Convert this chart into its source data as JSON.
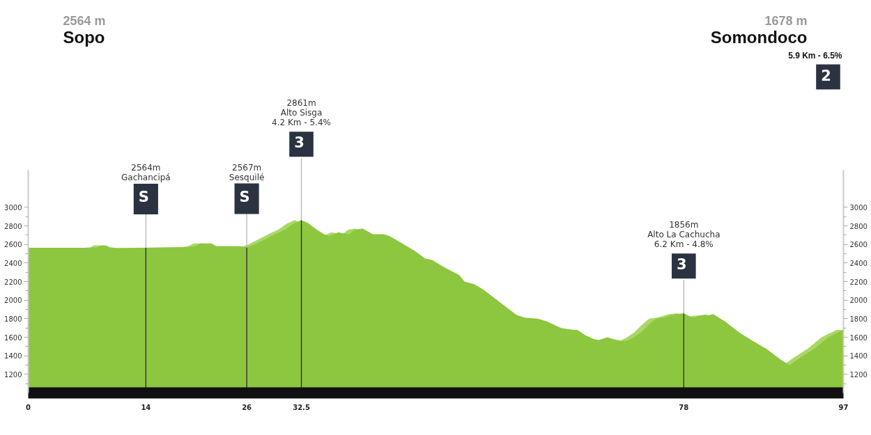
{
  "chart_data": {
    "type": "area",
    "xlim": [
      0,
      97
    ],
    "ylim": [
      1000,
      3400
    ],
    "y2lim": [
      1000,
      3400
    ],
    "xticks": [
      0,
      14,
      26,
      32.5,
      78,
      97
    ],
    "yticks": [
      {
        "value": 1100,
        "label": null
      },
      1200,
      {
        "value": 1300,
        "label": null
      },
      1400,
      {
        "value": 1500,
        "label": null
      },
      1600,
      {
        "value": 1700,
        "label": null
      },
      1800,
      {
        "value": 1900,
        "label": null
      },
      2000,
      {
        "value": 2100,
        "label": null
      },
      2200,
      {
        "value": 2300,
        "label": null
      },
      2400,
      {
        "value": 2500,
        "label": null
      },
      2600,
      {
        "value": 2700,
        "label": null
      },
      2800,
      {
        "value": 2900,
        "label": null
      },
      3000
    ],
    "y2ticks": [
      {
        "value": 1100,
        "label": null
      },
      1200,
      {
        "value": 1300,
        "label": null
      },
      1400,
      {
        "value": 1500,
        "label": null
      },
      1600,
      {
        "value": 1700,
        "label": null
      },
      1800,
      {
        "value": 1900,
        "label": null
      },
      2000,
      {
        "value": 2100,
        "label": null
      },
      2200,
      {
        "value": 2300,
        "label": null
      },
      2400,
      {
        "value": 2500,
        "label": null
      },
      2600,
      {
        "value": 2700,
        "label": null
      },
      2800,
      {
        "value": 2900,
        "label": null
      },
      3000
    ],
    "series": [
      {
        "color": "#a9d867",
        "x": [
          0,
          6.7,
          7.4,
          7.8,
          8.4,
          8.9,
          9.7,
          13.2,
          18.2,
          19.0,
          19.7,
          21.0,
          21.6,
          22.7,
          24.4,
          25.2,
          26.2,
          27.5,
          28.8,
          29.8,
          30.7,
          31.7,
          32.1,
          33.5,
          34.4,
          35.4,
          36.1,
          36.6,
          37.4,
          38.1,
          39.0,
          40.2,
          41.5,
          42.2,
          43.7,
          45.2,
          46.4,
          47.3,
          48.2,
          49.2,
          50.5,
          51.1,
          52.3,
          53.4,
          54.7,
          56.0,
          57.3,
          58.3,
          59.8,
          60.9,
          62.6,
          63.9,
          64.5,
          65.5,
          66.5,
          67.1,
          68.1,
          68.8,
          69.8,
          70.4,
          71.1,
          72.1,
          73.1,
          73.9,
          74.8,
          75.6,
          76.3,
          77.2,
          78.8,
          79.1,
          80.3,
          80.7,
          82.1,
          83.8,
          85.4,
          87.1,
          88.7,
          90.2,
          91.1,
          92.8,
          94.4,
          96.2,
          97
        ],
        "values": [
          2564,
          2564,
          2570,
          2590,
          2590,
          2570,
          2560,
          2564,
          2570,
          2580,
          2610,
          2610,
          null,
          2580,
          2580,
          2567,
          2600,
          2660,
          2720,
          2760,
          2820,
          2861,
          2845,
          null,
          null,
          2703,
          2730,
          2720,
          2710,
          2760,
          2770,
          null,
          null,
          null,
          null,
          null,
          null,
          null,
          null,
          null,
          null,
          null,
          null,
          null,
          null,
          null,
          null,
          null,
          null,
          null,
          null,
          null,
          null,
          null,
          null,
          null,
          null,
          null,
          null,
          1560,
          1590,
          1650,
          1740,
          1800,
          1810,
          1830,
          1850,
          1856,
          1822,
          1830,
          1840,
          1850,
          null,
          null,
          null,
          null,
          null,
          1323,
          1380,
          1480,
          1600,
          1678,
          1678
        ]
      },
      {
        "color": "#8dc63f",
        "x": [
          0,
          7.5,
          8.2,
          8.6,
          9.2,
          9.7,
          10.5,
          14,
          19.0,
          19.8,
          20.5,
          21.8,
          22.4,
          23.5,
          25.2,
          26,
          27.0,
          28.3,
          29.6,
          30.6,
          31.5,
          32.5,
          33.3,
          34.3,
          35.2,
          35.8,
          36.9,
          37.4,
          38.2,
          38.9,
          39.8,
          41.0,
          42.3,
          43.0,
          44.5,
          46.0,
          47.2,
          48.1,
          49.0,
          50.0,
          51.3,
          51.9,
          53.1,
          54.2,
          55.5,
          56.8,
          58.1,
          59.1,
          60.6,
          61.7,
          63.4,
          64.7,
          65.3,
          66.3,
          67.3,
          67.9,
          68.9,
          69.6,
          70.6,
          71.2,
          71.9,
          72.9,
          73.9,
          74.7,
          75.6,
          76.4,
          77.1,
          78,
          79.1,
          79.9,
          81.1,
          81.5,
          82.9,
          84.6,
          86.2,
          87.9,
          89.5,
          90.6,
          91.9,
          93.6,
          95.2,
          97
        ],
        "values": [
          2564,
          2564,
          2570,
          2590,
          2590,
          2570,
          2560,
          2564,
          2570,
          2580,
          2610,
          2610,
          2580,
          2580,
          2580,
          2567,
          2600,
          2660,
          2720,
          2760,
          2820,
          2861,
          2830,
          2760,
          2710,
          2690,
          2730,
          2720,
          2710,
          2760,
          2770,
          2710,
          2710,
          2690,
          2610,
          2530,
          2450,
          2430,
          2380,
          2330,
          2270,
          2200,
          2170,
          2110,
          2020,
          1930,
          1840,
          1810,
          1800,
          1770,
          1700,
          1680,
          1680,
          1620,
          1580,
          1570,
          1600,
          1580,
          1560,
          1560,
          1590,
          1650,
          1740,
          1800,
          1810,
          1830,
          1850,
          1856,
          1810,
          1830,
          1840,
          1850,
          1770,
          1650,
          1560,
          1470,
          1360,
          1300,
          1380,
          1480,
          1600,
          1678
        ]
      }
    ],
    "ref_lines": [
      {
        "axis": "x",
        "value": 14,
        "label": "2564m\nGachancipá\nS"
      },
      {
        "axis": "x",
        "value": 26,
        "label": "2567m\nSesquilé\nS"
      },
      {
        "axis": "x",
        "value": 32.5,
        "label": "2861m\nAlto Sisga\n4.2 Km - 5.4%\n3"
      },
      {
        "axis": "x",
        "value": 78,
        "label": "1856m\nAlto La Cachucha\n6.2 Km - 4.8%\n3"
      }
    ],
    "annotations": [
      "2564 m",
      "Sopo",
      "1678 m",
      "Somondoco",
      "5.9 Km - 6.5%",
      "2"
    ]
  }
}
